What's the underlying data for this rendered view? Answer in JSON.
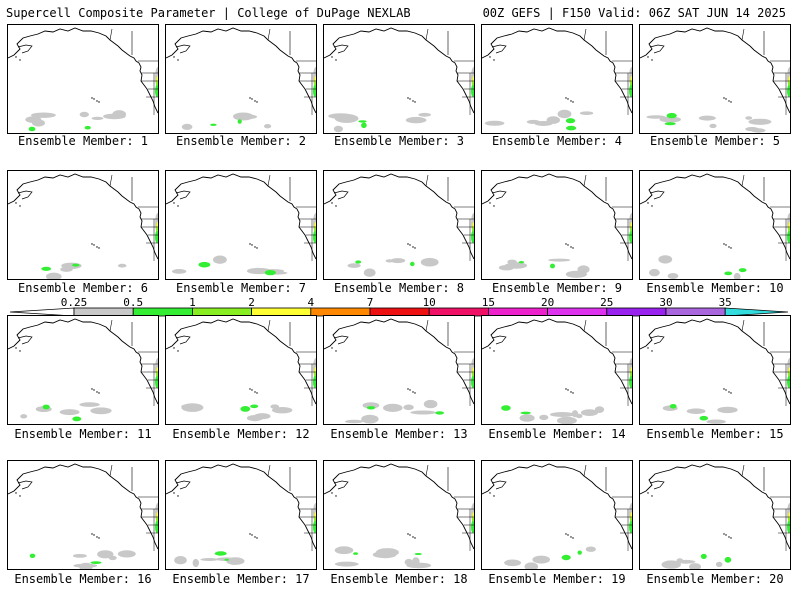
{
  "header": {
    "title_left": "Supercell Composite Parameter | College of DuPage NEXLAB",
    "title_right": "00Z GEFS | F150 Valid: 06Z SAT JUN 14 2025"
  },
  "panel_label_prefix": "Ensemble Member:",
  "members": [
    "1",
    "2",
    "3",
    "4",
    "5",
    "6",
    "7",
    "8",
    "9",
    "10",
    "11",
    "12",
    "13",
    "14",
    "15",
    "16",
    "17",
    "18",
    "19",
    "20"
  ],
  "colorbar": {
    "thresholds": [
      "0.25",
      "0.5",
      "1",
      "2",
      "4",
      "7",
      "10",
      "15",
      "20",
      "25",
      "30",
      "35"
    ],
    "colors": [
      "#c8c8c8",
      "#33ee33",
      "#88ee22",
      "#ffff33",
      "#ff8800",
      "#ee1111",
      "#ee1166",
      "#ee22cc",
      "#dd33ee",
      "#9922ee",
      "#aa66dd",
      "#33dddd"
    ]
  },
  "map": {
    "land_color": "#ffffff",
    "boundary_color": "#000000"
  }
}
